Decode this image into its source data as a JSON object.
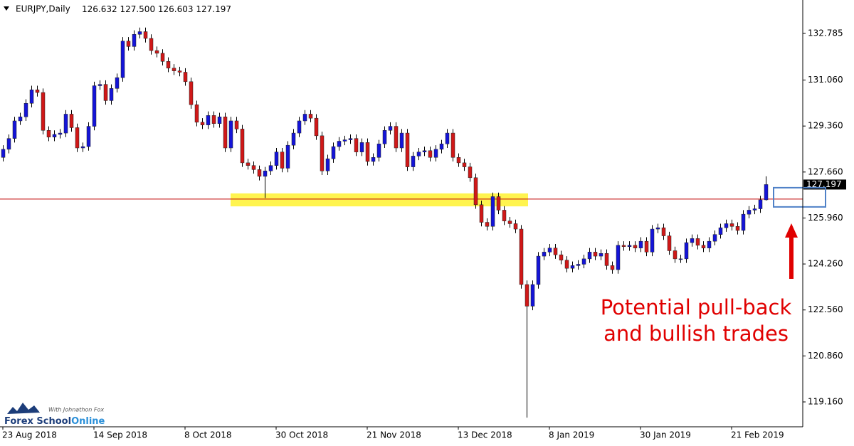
{
  "chart_data": {
    "type": "candlestick",
    "title": "EURJPY,Daily",
    "header_values": [
      "126.632",
      "127.500",
      "126.603",
      "127.197"
    ],
    "categories": [
      "23 Aug 2018",
      null,
      null,
      null,
      null,
      null,
      null,
      null,
      null,
      null,
      null,
      null,
      null,
      null,
      null,
      null,
      "14 Sep 2018",
      null,
      null,
      null,
      null,
      null,
      null,
      null,
      null,
      null,
      null,
      null,
      null,
      null,
      null,
      null,
      "8 Oct 2018",
      null,
      null,
      null,
      null,
      null,
      null,
      null,
      null,
      null,
      null,
      null,
      null,
      null,
      null,
      null,
      "30 Oct 2018",
      null,
      null,
      null,
      null,
      null,
      null,
      null,
      null,
      null,
      null,
      null,
      null,
      null,
      null,
      null,
      "21 Nov 2018",
      null,
      null,
      null,
      null,
      null,
      null,
      null,
      null,
      null,
      null,
      null,
      null,
      null,
      null,
      null,
      "13 Dec 2018",
      null,
      null,
      null,
      null,
      null,
      null,
      null,
      null,
      null,
      null,
      null,
      null,
      null,
      null,
      null,
      "8 Jan 2019",
      null,
      null,
      null,
      null,
      null,
      null,
      null,
      null,
      null,
      null,
      null,
      null,
      null,
      null,
      null,
      "30 Jan 2019",
      null,
      null,
      null,
      null,
      null,
      null,
      null,
      null,
      null,
      null,
      null,
      null,
      null,
      null,
      null,
      "21 Feb 2019",
      null,
      null,
      null,
      null,
      null,
      null
    ],
    "open": [
      128.2,
      128.5,
      128.9,
      129.55,
      129.7,
      130.2,
      130.7,
      130.6,
      129.2,
      128.95,
      129.05,
      129.1,
      129.8,
      129.3,
      128.55,
      128.6,
      129.35,
      130.85,
      130.9,
      130.3,
      130.75,
      131.15,
      132.5,
      132.3,
      132.75,
      132.85,
      132.6,
      132.15,
      132.05,
      131.75,
      131.5,
      131.4,
      131.35,
      131.0,
      130.15,
      129.5,
      129.4,
      129.75,
      129.45,
      129.7,
      128.55,
      129.55,
      129.25,
      128.0,
      127.9,
      127.75,
      127.5,
      127.7,
      127.9,
      128.4,
      127.8,
      128.65,
      129.1,
      129.55,
      129.8,
      129.65,
      129.0,
      127.7,
      128.15,
      128.6,
      128.8,
      128.85,
      128.9,
      128.4,
      128.75,
      128.05,
      128.2,
      128.7,
      129.2,
      129.35,
      128.55,
      129.1,
      127.85,
      128.25,
      128.4,
      128.45,
      128.2,
      128.5,
      128.7,
      129.1,
      128.2,
      128.0,
      127.85,
      127.45,
      126.45,
      125.8,
      125.65,
      126.75,
      126.25,
      125.85,
      125.75,
      125.55,
      123.5,
      122.7,
      123.5,
      124.55,
      124.7,
      124.85,
      124.6,
      124.4,
      124.1,
      124.2,
      124.25,
      124.45,
      124.7,
      124.55,
      124.65,
      124.2,
      124.05,
      124.95,
      124.9,
      124.95,
      124.85,
      125.1,
      124.7,
      125.55,
      125.6,
      125.3,
      124.75,
      124.45,
      124.45,
      125.05,
      125.2,
      124.95,
      124.85,
      125.1,
      125.35,
      125.6,
      125.75,
      125.65,
      125.5,
      126.1,
      126.25,
      126.3,
      126.632
    ],
    "high": [
      128.65,
      129.05,
      129.7,
      129.85,
      130.35,
      130.85,
      130.85,
      130.75,
      129.35,
      129.2,
      129.25,
      129.95,
      129.95,
      129.45,
      128.75,
      129.5,
      131.0,
      131.05,
      131.05,
      130.9,
      131.3,
      132.65,
      132.65,
      132.9,
      133.0,
      133.0,
      132.75,
      132.3,
      132.2,
      131.9,
      131.65,
      131.55,
      131.5,
      131.15,
      130.3,
      129.65,
      129.9,
      129.9,
      129.85,
      129.85,
      129.7,
      129.7,
      129.4,
      128.15,
      128.05,
      127.9,
      127.85,
      128.05,
      128.55,
      128.55,
      128.8,
      129.25,
      129.7,
      129.95,
      129.95,
      129.8,
      129.15,
      128.3,
      128.75,
      128.95,
      129.0,
      129.05,
      129.05,
      128.9,
      128.9,
      128.35,
      128.85,
      129.35,
      129.5,
      129.5,
      129.25,
      129.25,
      128.4,
      128.55,
      128.6,
      128.6,
      128.65,
      128.85,
      129.25,
      129.25,
      128.35,
      128.15,
      128.0,
      127.6,
      126.6,
      125.95,
      126.9,
      126.9,
      126.4,
      126.0,
      125.9,
      125.7,
      123.65,
      123.65,
      124.7,
      124.85,
      125.0,
      125.0,
      124.75,
      124.55,
      124.35,
      124.4,
      124.6,
      124.85,
      124.85,
      124.8,
      124.8,
      124.35,
      125.1,
      125.1,
      125.1,
      125.1,
      125.25,
      125.25,
      125.7,
      125.75,
      125.75,
      125.45,
      124.9,
      124.6,
      125.2,
      125.35,
      125.35,
      125.1,
      125.25,
      125.5,
      125.75,
      125.9,
      125.9,
      125.8,
      126.25,
      126.4,
      126.45,
      126.78,
      127.5
    ],
    "low": [
      128.05,
      128.35,
      128.75,
      129.4,
      129.55,
      130.05,
      130.45,
      129.05,
      128.8,
      128.8,
      128.9,
      128.95,
      129.15,
      128.4,
      128.4,
      128.45,
      129.2,
      130.7,
      130.15,
      130.15,
      130.6,
      131.0,
      132.15,
      132.15,
      132.6,
      132.45,
      132.0,
      131.9,
      131.6,
      131.35,
      131.25,
      131.2,
      130.85,
      130.0,
      129.35,
      129.25,
      129.25,
      129.3,
      129.3,
      128.4,
      128.4,
      129.1,
      127.85,
      127.75,
      127.6,
      127.35,
      126.7,
      127.55,
      127.75,
      127.65,
      127.65,
      128.5,
      128.95,
      129.4,
      129.5,
      128.85,
      127.55,
      127.55,
      128.0,
      128.45,
      128.65,
      128.7,
      128.25,
      128.25,
      127.9,
      127.9,
      128.05,
      128.55,
      129.05,
      128.4,
      128.4,
      127.7,
      127.7,
      128.1,
      128.25,
      128.05,
      128.05,
      128.35,
      128.55,
      128.05,
      127.85,
      127.7,
      127.3,
      126.3,
      125.65,
      125.5,
      125.5,
      126.1,
      125.7,
      125.6,
      125.4,
      123.35,
      118.58,
      122.55,
      123.35,
      124.4,
      124.55,
      124.45,
      124.25,
      123.95,
      123.95,
      124.05,
      124.1,
      124.3,
      124.4,
      124.4,
      124.05,
      123.9,
      123.9,
      124.75,
      124.75,
      124.7,
      124.7,
      124.55,
      124.55,
      125.4,
      125.15,
      124.6,
      124.3,
      124.3,
      124.3,
      124.9,
      124.8,
      124.7,
      124.7,
      124.95,
      125.2,
      125.45,
      125.5,
      125.35,
      125.35,
      125.95,
      126.1,
      126.15,
      126.603
    ],
    "close": [
      128.5,
      128.9,
      129.55,
      129.7,
      130.2,
      130.7,
      130.6,
      129.2,
      128.95,
      129.05,
      129.1,
      129.8,
      129.3,
      128.55,
      128.6,
      129.35,
      130.85,
      130.9,
      130.3,
      130.75,
      131.15,
      132.5,
      132.3,
      132.75,
      132.85,
      132.6,
      132.15,
      132.05,
      131.75,
      131.5,
      131.4,
      131.35,
      131.0,
      130.15,
      129.5,
      129.4,
      129.75,
      129.45,
      129.7,
      128.55,
      129.55,
      129.25,
      128.0,
      127.9,
      127.75,
      127.5,
      127.7,
      127.9,
      128.4,
      127.8,
      128.65,
      129.1,
      129.55,
      129.8,
      129.65,
      129.0,
      127.7,
      128.15,
      128.6,
      128.8,
      128.85,
      128.9,
      128.4,
      128.75,
      128.05,
      128.2,
      128.7,
      129.2,
      129.35,
      128.55,
      129.1,
      127.85,
      128.25,
      128.4,
      128.45,
      128.2,
      128.5,
      128.7,
      129.1,
      128.2,
      128.0,
      127.85,
      127.45,
      126.45,
      125.8,
      125.65,
      126.75,
      126.25,
      125.85,
      125.75,
      125.55,
      123.5,
      122.7,
      123.5,
      124.55,
      124.7,
      124.85,
      124.6,
      124.4,
      124.1,
      124.2,
      124.25,
      124.45,
      124.7,
      124.55,
      124.65,
      124.2,
      124.05,
      124.95,
      124.9,
      124.95,
      124.85,
      125.1,
      124.7,
      125.55,
      125.6,
      125.3,
      124.75,
      124.45,
      124.45,
      125.05,
      125.2,
      124.95,
      124.85,
      125.1,
      125.35,
      125.6,
      125.75,
      125.65,
      125.5,
      126.1,
      126.25,
      126.3,
      126.632,
      127.197
    ],
    "ylim": [
      118.24,
      134.02
    ],
    "yticks": [
      132.785,
      {
        "value": 131.06,
        "label": "131.060"
      },
      {
        "value": 129.36,
        "label": "129.360"
      },
      {
        "value": 127.66,
        "label": "127.660"
      },
      {
        "value": 125.96,
        "label": "125.960"
      },
      {
        "value": 124.26,
        "label": "124.260"
      },
      {
        "value": 122.56,
        "label": "122.560"
      },
      {
        "value": 120.86,
        "label": "120.860"
      },
      {
        "value": 119.16,
        "label": "119.160"
      }
    ],
    "up_color": "#1414d8",
    "down_color": "#d01818",
    "wick_color": "#000000",
    "support_line": {
      "value": 126.66,
      "color": "#c00000"
    },
    "zone": {
      "range": [
        126.39,
        126.87
      ],
      "color": "#fff44f"
    },
    "target_box": {
      "range": [
        126.37,
        127.08
      ],
      "color": "#4f81c7"
    },
    "annotation": [
      "Potential pull-back",
      "and bullish trades"
    ],
    "annotation_color": "#e00000",
    "logo": {
      "name": "Forex School",
      "suffix": "Online",
      "tagline": "With Johnathon Fox"
    }
  }
}
